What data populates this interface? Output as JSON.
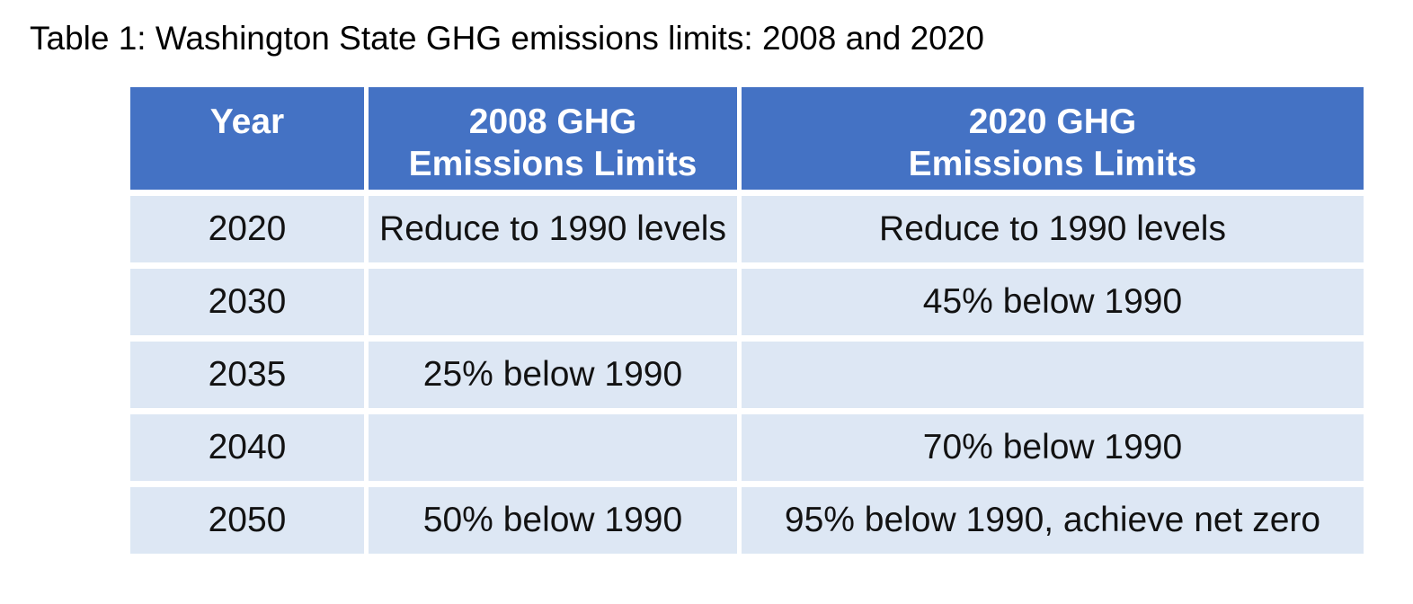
{
  "title": "Table 1: Washington State GHG emissions limits: 2008 and 2020",
  "colors": {
    "header_bg": "#4472C4",
    "header_text": "#FFFFFF",
    "row_bg": "#DDE7F4",
    "body_text": "#121212",
    "page_bg": "#FFFFFF"
  },
  "chart_data": {
    "type": "table",
    "title": "Table 1: Washington State GHG emissions limits: 2008 and 2020",
    "columns": [
      "Year",
      "2008 GHG Emissions Limits",
      "2020 GHG Emissions Limits"
    ],
    "rows": [
      [
        "2020",
        "Reduce to 1990 levels",
        "Reduce to 1990 levels"
      ],
      [
        "2030",
        "",
        "45% below 1990"
      ],
      [
        "2035",
        "25% below 1990",
        ""
      ],
      [
        "2040",
        "",
        "70% below 1990"
      ],
      [
        "2050",
        "50% below 1990",
        "95% below 1990, achieve net zero"
      ]
    ]
  },
  "table": {
    "headers": [
      {
        "line1": "Year",
        "line2": ""
      },
      {
        "line1": "2008 GHG",
        "line2": "Emissions Limits"
      },
      {
        "line1": "2020 GHG",
        "line2": "Emissions Limits"
      }
    ],
    "rows": [
      {
        "year": "2020",
        "limit_2008": "Reduce to 1990 levels",
        "limit_2020": "Reduce to 1990 levels"
      },
      {
        "year": "2030",
        "limit_2008": "",
        "limit_2020": "45% below 1990"
      },
      {
        "year": "2035",
        "limit_2008": "25% below 1990",
        "limit_2020": ""
      },
      {
        "year": "2040",
        "limit_2008": "",
        "limit_2020": "70% below 1990"
      },
      {
        "year": "2050",
        "limit_2008": "50% below 1990",
        "limit_2020": "95% below 1990, achieve net zero"
      }
    ]
  }
}
